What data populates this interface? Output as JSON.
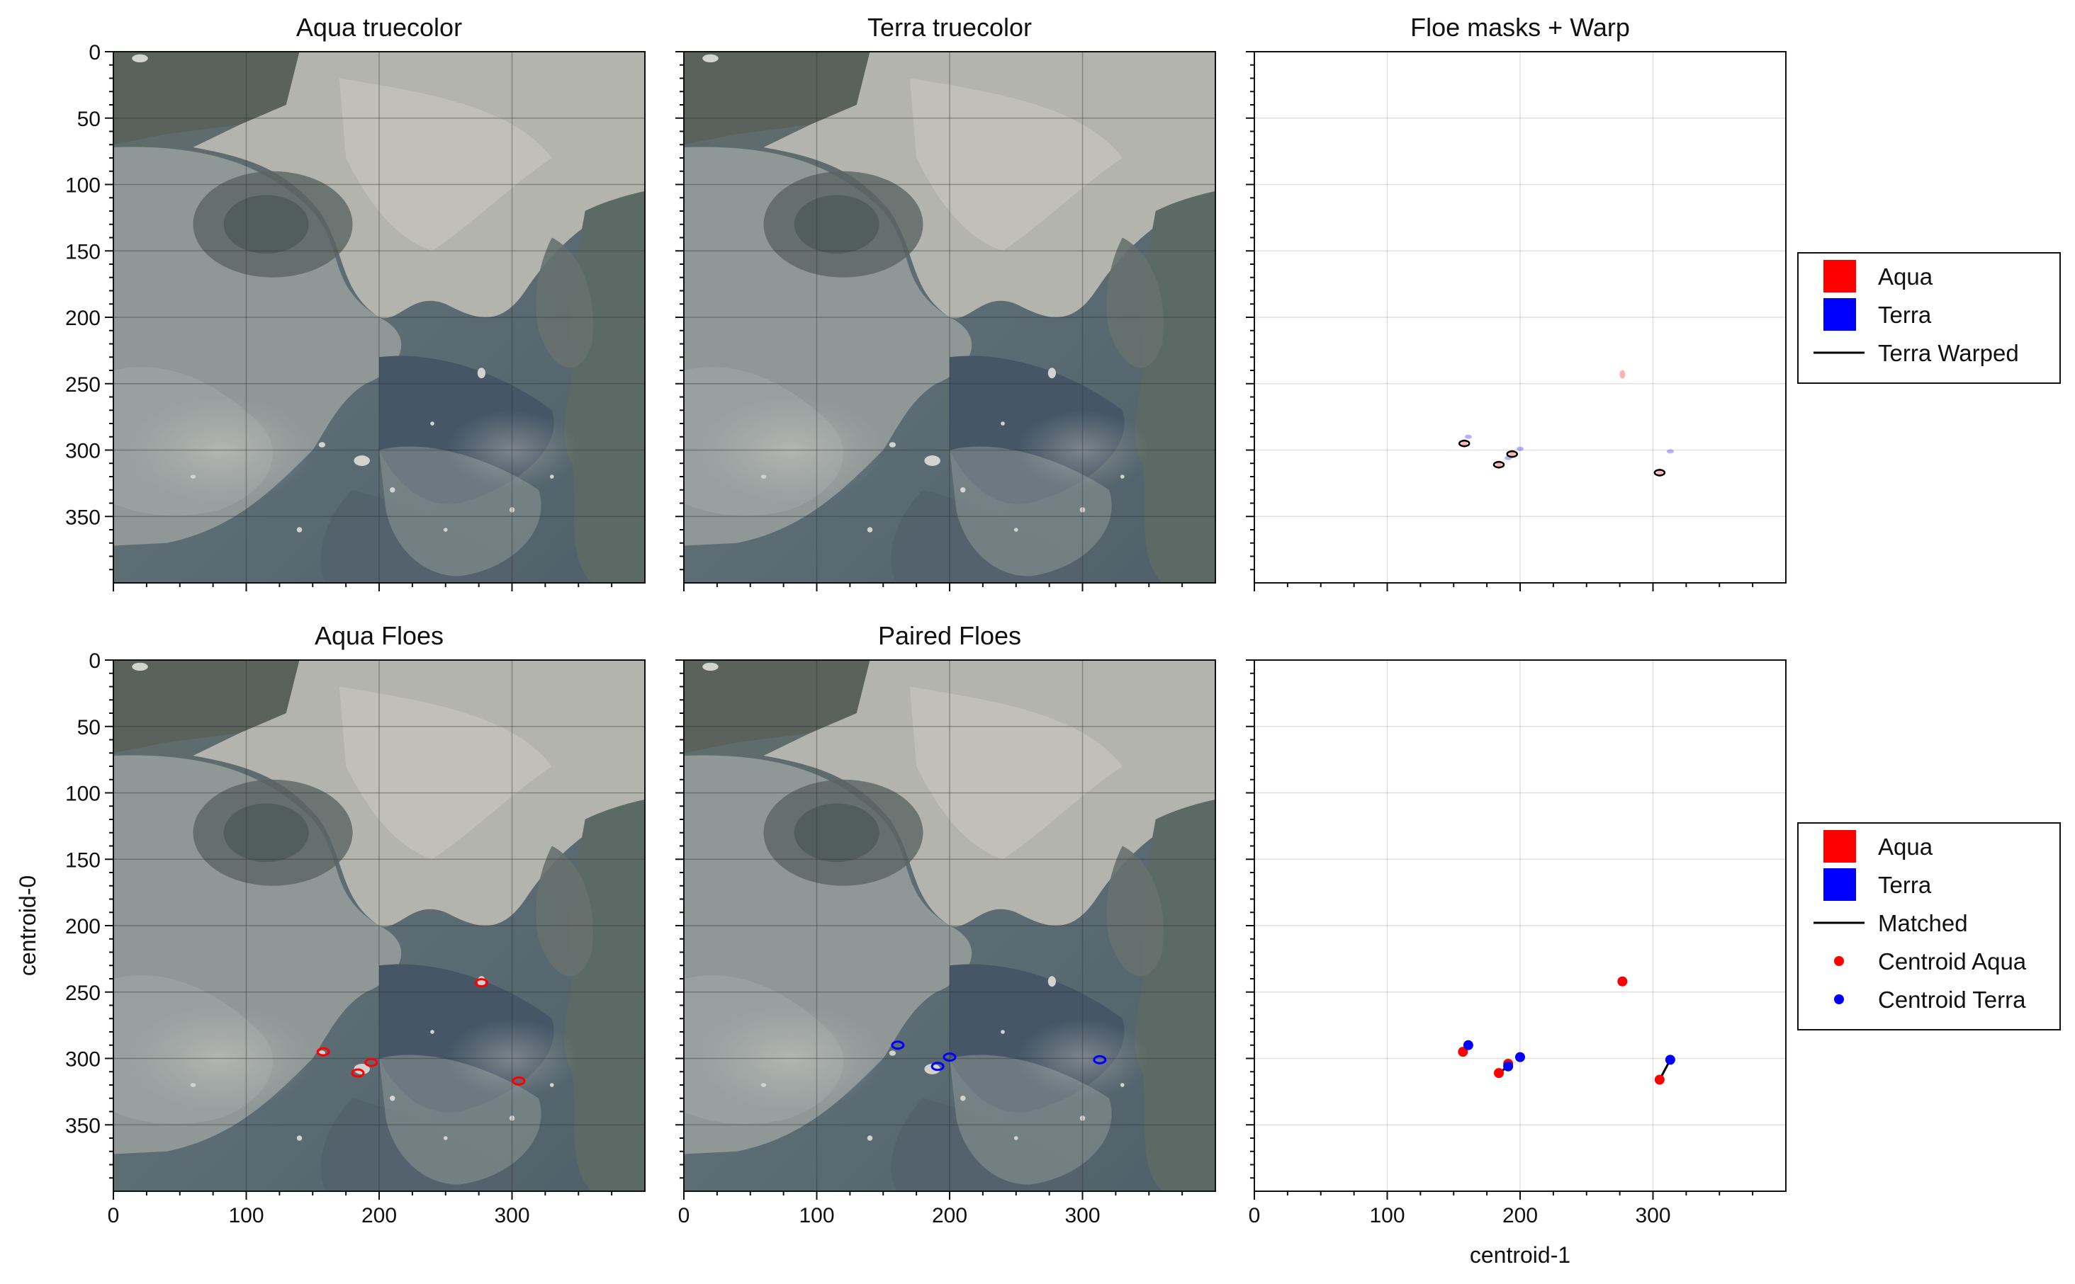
{
  "figure": {
    "xlabel": "centroid-1",
    "ylabel": "centroid-0",
    "xticks": [
      0,
      100,
      200,
      300
    ],
    "yticks": [
      0,
      50,
      100,
      150,
      200,
      250,
      300,
      350
    ],
    "xlim": [
      0,
      400
    ],
    "ylim": [
      400,
      0
    ]
  },
  "chart_data": [
    {
      "type": "image",
      "title": "Aqua truecolor"
    },
    {
      "type": "image",
      "title": "Terra truecolor"
    },
    {
      "type": "mask-overlay",
      "title": "Floe masks + Warp",
      "legend": [
        {
          "label": "Aqua",
          "color": "#ff0000",
          "marker": "square"
        },
        {
          "label": "Terra",
          "color": "#0000ff",
          "marker": "square"
        },
        {
          "label": "Terra Warped",
          "color": "#000000",
          "marker": "line"
        }
      ],
      "aqua_masks": [
        [
          243,
          277
        ],
        [
          295,
          158
        ],
        [
          311,
          184
        ],
        [
          303,
          194
        ],
        [
          317,
          305
        ]
      ],
      "terra_masks": [
        [
          290,
          161
        ],
        [
          306,
          191
        ],
        [
          299,
          200
        ],
        [
          301,
          313
        ]
      ],
      "warped_masks": [
        [
          295,
          158
        ],
        [
          311,
          184
        ],
        [
          303,
          194
        ],
        [
          317,
          305
        ]
      ]
    },
    {
      "type": "image",
      "title": "Aqua Floes",
      "outlines": [
        [
          243,
          277
        ],
        [
          295,
          158
        ],
        [
          311,
          184
        ],
        [
          303,
          194
        ],
        [
          317,
          305
        ]
      ],
      "outline_color": "#ff0000"
    },
    {
      "type": "image",
      "title": "Paired Floes",
      "outlines": [
        [
          290,
          161
        ],
        [
          306,
          191
        ],
        [
          299,
          200
        ],
        [
          301,
          313
        ]
      ],
      "outline_color": "#0000ff"
    },
    {
      "type": "scatter",
      "title": "",
      "legend": [
        {
          "label": "Aqua",
          "color": "#ff0000",
          "marker": "square"
        },
        {
          "label": "Terra",
          "color": "#0000ff",
          "marker": "square"
        },
        {
          "label": "Matched",
          "color": "#000000",
          "marker": "line"
        },
        {
          "label": "Centroid Aqua",
          "color": "#ff0000",
          "marker": "dot"
        },
        {
          "label": "Centroid Terra",
          "color": "#0000ff",
          "marker": "dot"
        }
      ],
      "centroid_aqua": [
        [
          157,
          295
        ],
        [
          184,
          311
        ],
        [
          277,
          242
        ],
        [
          305,
          316
        ],
        [
          191,
          304
        ]
      ],
      "centroid_terra": [
        [
          161,
          290
        ],
        [
          191,
          306
        ],
        [
          200,
          299
        ],
        [
          313,
          301
        ]
      ],
      "matched": [
        [
          [
            184,
            311
          ],
          [
            191,
            306
          ]
        ],
        [
          [
            305,
            316
          ],
          [
            313,
            301
          ]
        ]
      ]
    }
  ]
}
